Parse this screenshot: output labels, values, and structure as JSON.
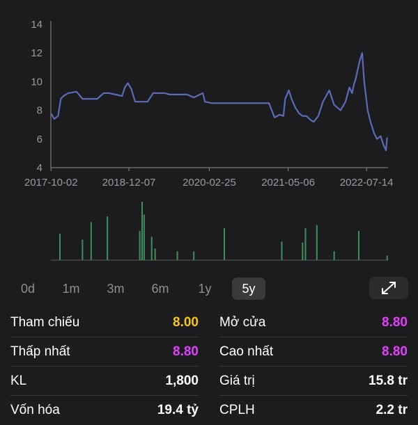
{
  "chart_data": {
    "type": "line",
    "y_ticks": [
      4,
      6,
      8,
      10,
      12,
      14
    ],
    "ylim": [
      4,
      14
    ],
    "x_tick_labels": [
      "2017-10-02",
      "2018-12-07",
      "2020-02-25",
      "2021-05-06",
      "2022-07-14"
    ],
    "x_tick_dates": [
      "2017-10-02",
      "2018-12-07",
      "2020-02-25",
      "2021-05-06",
      "2022-07-14"
    ],
    "xlim": [
      "2017-10-01",
      "2022-11-10"
    ],
    "series": [
      {
        "color": "#5b6bb5",
        "x": [
          "2017-10-01",
          "2017-10-20",
          "2017-11-10",
          "2017-11-25",
          "2017-12-10",
          "2018-01-05",
          "2018-02-20",
          "2018-03-25",
          "2018-04-25",
          "2018-06-15",
          "2018-07-20",
          "2018-08-20",
          "2018-10-30",
          "2018-11-15",
          "2018-12-01",
          "2018-12-20",
          "2019-01-10",
          "2019-03-20",
          "2019-04-20",
          "2019-05-20",
          "2019-06-25",
          "2019-07-20",
          "2019-10-25",
          "2019-12-01",
          "2020-01-20",
          "2020-02-01",
          "2020-03-10",
          "2020-06-15",
          "2020-09-20",
          "2021-01-20",
          "2021-02-20",
          "2021-03-20",
          "2021-04-10",
          "2021-04-20",
          "2021-05-10",
          "2021-05-25",
          "2021-06-15",
          "2021-07-05",
          "2021-07-25",
          "2021-08-15",
          "2021-09-10",
          "2021-09-25",
          "2021-10-20",
          "2021-11-15",
          "2021-12-20",
          "2022-01-15",
          "2022-02-20",
          "2022-03-20",
          "2022-04-10",
          "2022-04-25",
          "2022-05-05",
          "2022-05-15",
          "2022-06-05",
          "2022-06-20",
          "2022-07-01",
          "2022-07-20",
          "2022-08-05",
          "2022-08-25",
          "2022-09-10",
          "2022-09-30",
          "2022-10-15",
          "2022-10-30",
          "2022-11-05"
        ],
        "y": [
          7.8,
          7.4,
          7.6,
          8.8,
          9.0,
          9.2,
          9.3,
          8.8,
          8.8,
          8.8,
          9.2,
          9.2,
          9.0,
          9.6,
          9.9,
          9.5,
          8.6,
          8.6,
          9.2,
          9.2,
          9.2,
          9.1,
          9.1,
          8.9,
          9.2,
          8.6,
          8.5,
          8.5,
          8.5,
          8.5,
          7.5,
          7.7,
          7.6,
          8.8,
          9.4,
          8.8,
          8.2,
          7.8,
          7.6,
          7.6,
          7.3,
          7.2,
          7.6,
          8.6,
          9.4,
          8.4,
          8.0,
          8.6,
          9.6,
          9.2,
          9.8,
          10.2,
          11.4,
          12.0,
          10.0,
          8.0,
          7.2,
          6.4,
          6.0,
          6.2,
          5.6,
          5.2,
          6.1
        ]
      }
    ],
    "volume_series": {
      "color": "#3f8f5e",
      "x": [
        "2017-11-20",
        "2018-03-25",
        "2018-05-12",
        "2018-08-10",
        "2019-02-05",
        "2019-02-18",
        "2019-03-01",
        "2019-04-12",
        "2019-05-01",
        "2019-09-01",
        "2019-12-01",
        "2020-05-18",
        "2021-04-01",
        "2021-07-25",
        "2021-08-10",
        "2021-10-12",
        "2022-01-16",
        "2022-06-01",
        "2022-11-05"
      ],
      "y": [
        0.45,
        0.35,
        0.65,
        0.75,
        0.5,
        1.0,
        0.78,
        0.4,
        0.2,
        0.15,
        0.15,
        0.55,
        0.32,
        0.3,
        0.55,
        0.6,
        0.15,
        0.5,
        0.08
      ]
    }
  },
  "range_tabs": [
    "0d",
    "1m",
    "3m",
    "6m",
    "1y",
    "5y"
  ],
  "active_range": "5y",
  "expand_icon": "expand-arrows-icon",
  "stats": [
    {
      "label": "Tham chiếu",
      "value": "8.00",
      "color": "#f5c518"
    },
    {
      "label": "Mở cửa",
      "value": "8.80",
      "color": "#e040fb"
    },
    {
      "label": "Thấp nhất",
      "value": "8.80",
      "color": "#e040fb"
    },
    {
      "label": "Cao nhất",
      "value": "8.80",
      "color": "#e040fb"
    },
    {
      "label": "KL",
      "value": "1,800",
      "color": "#ffffff"
    },
    {
      "label": "Giá trị",
      "value": "15.8 tr",
      "color": "#ffffff"
    },
    {
      "label": "Vốn hóa",
      "value": "19.4 tỷ",
      "color": "#ffffff"
    },
    {
      "label": "CPLH",
      "value": "2.2 tr",
      "color": "#ffffff"
    }
  ]
}
